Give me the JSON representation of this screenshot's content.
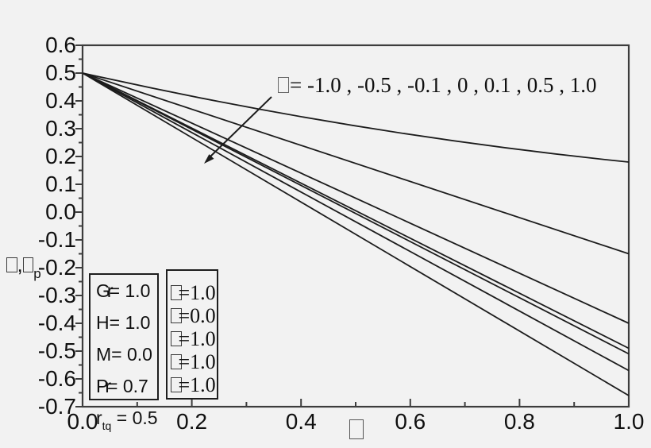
{
  "colors": {
    "background": "#f2f2f2",
    "frame": "#3d3d3d",
    "curve": "#1c1c1c",
    "text": "#101010"
  },
  "y_axis": {
    "title": "□,□",
    "title_sub": "p",
    "tick_labels": [
      "0.6",
      "0.5",
      "0.4",
      "0.3",
      "0.2",
      "0.1",
      "0.0",
      "-0.1",
      "-0.2",
      "-0.3",
      "-0.4",
      "-0.5",
      "-0.6",
      "-0.7"
    ]
  },
  "x_axis": {
    "title": "□",
    "tick_labels": [
      "0.0",
      "0.2",
      "0.4",
      "0.6",
      "0.8",
      "1.0"
    ]
  },
  "annotation": {
    "text": "□= -1.0 , -0.5 , -0.1 , 0 , 0.1 , 0.5 , 1.0"
  },
  "param_box": {
    "rows": [
      {
        "name": "Gr",
        "sub": "",
        "val": "= 1.0"
      },
      {
        "name": "H",
        "sub": "",
        "val": "= 1.0"
      },
      {
        "name": "M",
        "sub": "",
        "val": "= 0.0"
      },
      {
        "name": "Pr",
        "sub": "",
        "val": "= 0.7"
      },
      {
        "name": "r",
        "sub": "tq",
        "val": " = 0.5"
      }
    ]
  },
  "legend_box": {
    "rows": [
      {
        "text": "□=1.0"
      },
      {
        "text": "□=0.0"
      },
      {
        "text": "□=1.0"
      },
      {
        "text": "□=1.0"
      },
      {
        "text": "□=1.0"
      }
    ]
  },
  "chart_data": {
    "type": "line",
    "title": "",
    "xlabel": "□",
    "ylabel": "□,□p",
    "x_range": [
      0.0,
      1.0
    ],
    "y_range": [
      -0.7,
      0.6
    ],
    "x_tick_values": [
      0.0,
      0.2,
      0.4,
      0.6,
      0.8,
      1.0
    ],
    "y_tick_values": [
      0.6,
      0.5,
      0.4,
      0.3,
      0.2,
      0.1,
      0.0,
      -0.1,
      -0.2,
      -0.3,
      -0.4,
      -0.5,
      -0.6,
      -0.7
    ],
    "minor_ticks": "one midpoint between majors on both axes",
    "grid": false,
    "legend_position": "none (separate parameter boxes drawn inside plot)",
    "annotation_values": [
      -1.0,
      -0.5,
      -0.1,
      0,
      0.1,
      0.5,
      1.0
    ],
    "common_start_point": [
      0.0,
      0.5
    ],
    "series": [
      {
        "name": "□ = -1.0",
        "x": [
          0,
          0.5,
          1.0
        ],
        "y": [
          0.5,
          0.31,
          0.18
        ]
      },
      {
        "name": "□ = -0.5",
        "x": [
          0,
          1.0
        ],
        "y": [
          0.5,
          -0.15
        ]
      },
      {
        "name": "□ = -0.1",
        "x": [
          0,
          1.0
        ],
        "y": [
          0.5,
          -0.4
        ]
      },
      {
        "name": "□ = 0",
        "x": [
          0,
          1.0
        ],
        "y": [
          0.5,
          -0.49
        ]
      },
      {
        "name": "□ = 0.1",
        "x": [
          0,
          1.0
        ],
        "y": [
          0.5,
          -0.51
        ]
      },
      {
        "name": "□ = 0.5",
        "x": [
          0,
          1.0
        ],
        "y": [
          0.5,
          -0.57
        ]
      },
      {
        "name": "□ = 1.0",
        "x": [
          0,
          1.0
        ],
        "y": [
          0.5,
          -0.66
        ]
      }
    ]
  }
}
